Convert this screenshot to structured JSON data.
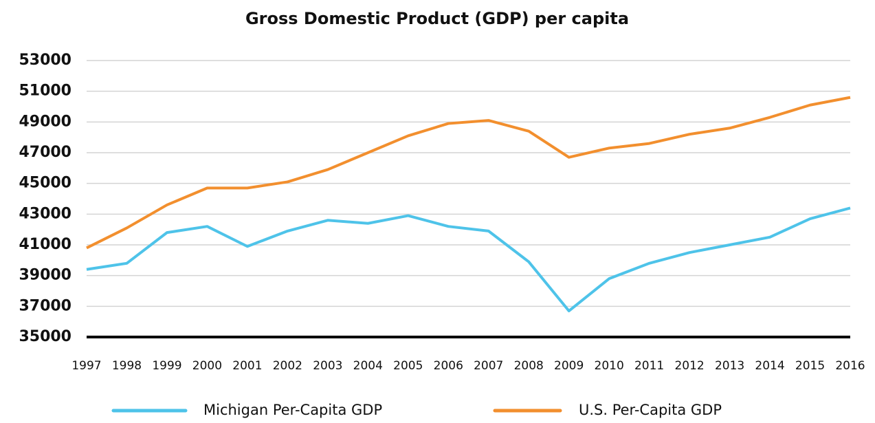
{
  "chart_data": {
    "type": "line",
    "title": "Gross Domestic Product (GDP) per capita",
    "categories": [
      "1997",
      "1998",
      "1999",
      "2000",
      "2001",
      "2002",
      "2003",
      "2004",
      "2005",
      "2006",
      "2007",
      "2008",
      "2009",
      "2010",
      "2011",
      "2012",
      "2013",
      "2014",
      "2015",
      "2016"
    ],
    "series": [
      {
        "name": "Michigan Per-Capita GDP",
        "color": "#4ec3e9",
        "values": [
          39400,
          39800,
          41800,
          42200,
          40900,
          41900,
          42600,
          42400,
          42900,
          42200,
          41900,
          39900,
          36700,
          38800,
          39800,
          40500,
          41000,
          41500,
          42700,
          43400
        ]
      },
      {
        "name": "U.S. Per-Capita GDP",
        "color": "#f28f2e",
        "values": [
          40800,
          42100,
          43600,
          44700,
          44700,
          45100,
          45900,
          47000,
          48100,
          48900,
          49100,
          48400,
          46700,
          47300,
          47600,
          48200,
          48600,
          49300,
          50100,
          50600
        ]
      }
    ],
    "ylim": [
      35000,
      53000
    ],
    "yticks": [
      35000,
      37000,
      39000,
      41000,
      43000,
      45000,
      47000,
      49000,
      51000,
      53000
    ],
    "grid": true,
    "legend": "bottom"
  }
}
